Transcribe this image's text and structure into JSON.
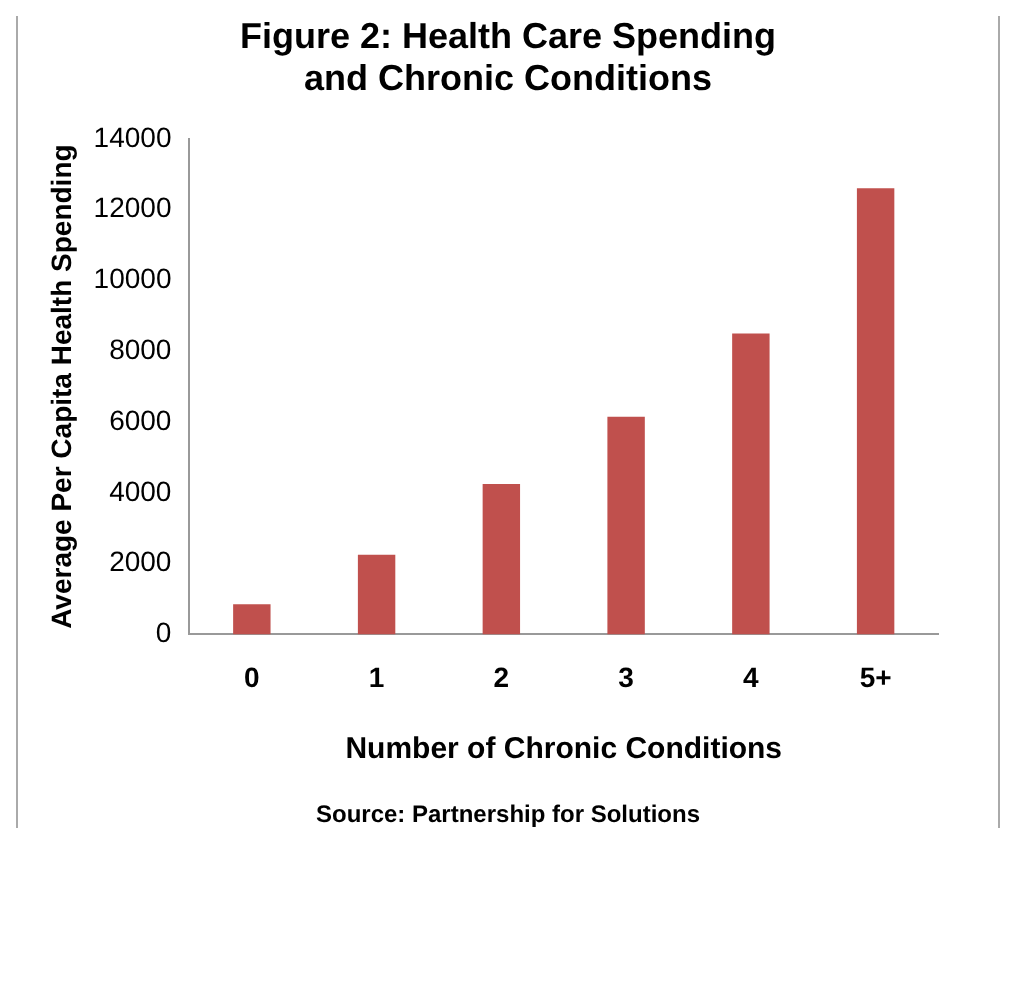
{
  "chart_data": {
    "type": "bar",
    "title": "Figure 2: Health Care Spending and Chronic Conditions",
    "xlabel": "Number of Chronic Conditions",
    "ylabel": "Average Per Capita Health Spending",
    "categories": [
      "0",
      "1",
      "2",
      "3",
      "4",
      "5+"
    ],
    "values": [
      850,
      2250,
      4250,
      6150,
      8500,
      12600
    ],
    "color": "#c0504d",
    "ylim": [
      0,
      14000
    ],
    "yticks": [
      0,
      2000,
      4000,
      6000,
      8000,
      10000,
      12000,
      14000
    ],
    "grid": false,
    "legend": false,
    "annotations": [
      "Source: Partnership for Solutions"
    ]
  }
}
